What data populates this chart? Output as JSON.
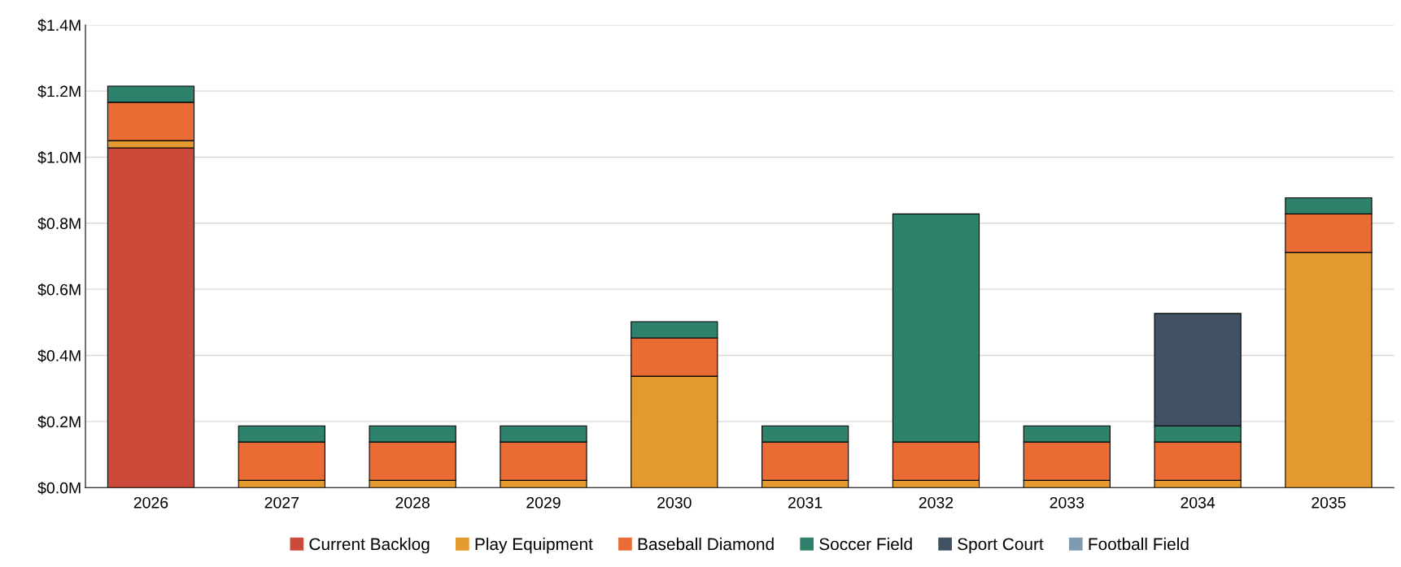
{
  "chart_data": {
    "type": "bar",
    "stacked": true,
    "categories": [
      "2026",
      "2027",
      "2028",
      "2029",
      "2030",
      "2031",
      "2032",
      "2033",
      "2034",
      "2035"
    ],
    "series": [
      {
        "name": "Current Backlog",
        "color": "#cc4a3a",
        "values": [
          1.028,
          0,
          0,
          0,
          0,
          0,
          0,
          0,
          0,
          0
        ]
      },
      {
        "name": "Play Equipment",
        "color": "#e59a2f",
        "values": [
          0.022,
          0.022,
          0.022,
          0.022,
          0.337,
          0.022,
          0.022,
          0.022,
          0.022,
          0.712
        ]
      },
      {
        "name": "Baseball Diamond",
        "color": "#e96c35",
        "values": [
          0.116,
          0.116,
          0.116,
          0.116,
          0.116,
          0.116,
          0.116,
          0.116,
          0.116,
          0.116
        ]
      },
      {
        "name": "Soccer Field",
        "color": "#2e826c",
        "values": [
          0.049,
          0.049,
          0.049,
          0.049,
          0.049,
          0.049,
          0.69,
          0.049,
          0.049,
          0.049
        ]
      },
      {
        "name": "Sport Court",
        "color": "#3f5163",
        "values": [
          0,
          0,
          0,
          0,
          0,
          0,
          0,
          0,
          0.34,
          0
        ]
      },
      {
        "name": "Football Field",
        "color": "#7f9bb0",
        "values": [
          0,
          0,
          0,
          0,
          0,
          0,
          0,
          0,
          0,
          0
        ]
      }
    ],
    "ylim": [
      0,
      1.4
    ],
    "yticks": [
      {
        "value": 0,
        "label": "$0.0M"
      },
      {
        "value": 0.2,
        "label": "$0.2M"
      },
      {
        "value": 0.4,
        "label": "$0.4M"
      },
      {
        "value": 0.6,
        "label": "$0.6M"
      },
      {
        "value": 0.8,
        "label": "$0.8M"
      },
      {
        "value": 1.0,
        "label": "$1.0M"
      },
      {
        "value": 1.2,
        "label": "$1.2M"
      },
      {
        "value": 1.4,
        "label": "$1.4M"
      }
    ],
    "grid": "y",
    "legend": "bottom"
  }
}
